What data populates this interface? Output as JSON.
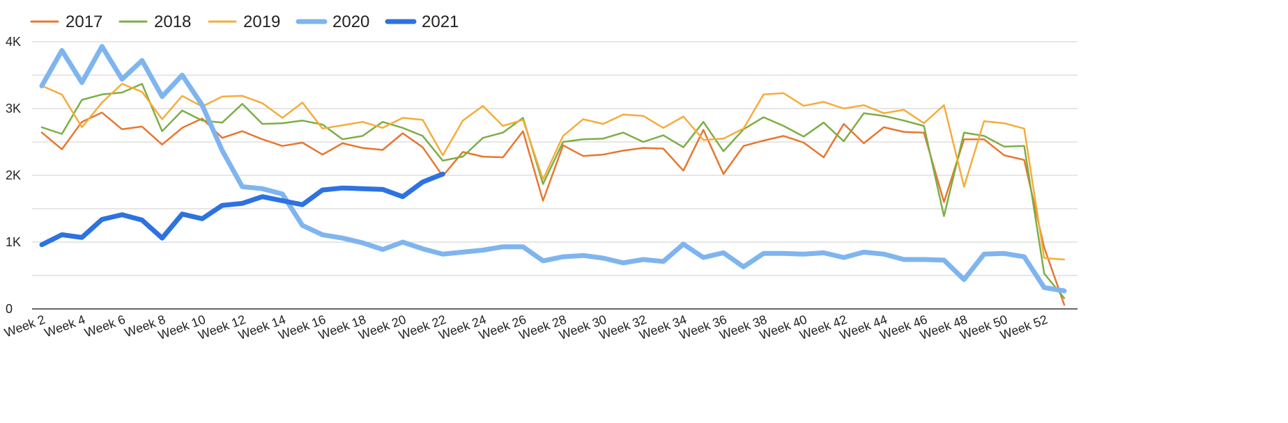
{
  "chart_data": {
    "type": "line",
    "title": "",
    "xlabel": "",
    "ylabel": "",
    "ylim": [
      0,
      4000
    ],
    "y_ticks": [
      {
        "value": 0,
        "label": "0"
      },
      {
        "value": 1000,
        "label": "1K"
      },
      {
        "value": 2000,
        "label": "2K"
      },
      {
        "value": 3000,
        "label": "3K"
      },
      {
        "value": 4000,
        "label": "4K"
      }
    ],
    "x_tick_labels": [
      "Week 2",
      "Week 4",
      "Week 6",
      "Week 8",
      "Week 10",
      "Week 12",
      "Week 14",
      "Week 16",
      "Week 18",
      "Week 20",
      "Week 22",
      "Week 24",
      "Week 26",
      "Week 28",
      "Week 30",
      "Week 32",
      "Week 34",
      "Week 36",
      "Week 38",
      "Week 40",
      "Week 42",
      "Week 44",
      "Week 46",
      "Week 48",
      "Week 50",
      "Week 52"
    ],
    "grid": true,
    "legend_position": "top-left",
    "x_start_week": 2,
    "series": [
      {
        "name": "2017",
        "color": "#e8762f",
        "values": [
          2640,
          2390,
          2800,
          2940,
          2690,
          2730,
          2460,
          2710,
          2850,
          2560,
          2660,
          2540,
          2440,
          2490,
          2310,
          2480,
          2410,
          2380,
          2630,
          2420,
          1990,
          2350,
          2280,
          2270,
          2660,
          1620,
          2450,
          2290,
          2310,
          2370,
          2410,
          2400,
          2070,
          2680,
          2020,
          2440,
          2520,
          2590,
          2490,
          2270,
          2770,
          2480,
          2720,
          2650,
          2640,
          1600,
          2540,
          2540,
          2300,
          2230,
          920,
          60
        ]
      },
      {
        "name": "2018",
        "color": "#7cae45",
        "values": [
          2720,
          2620,
          3130,
          3210,
          3240,
          3370,
          2660,
          2970,
          2820,
          2790,
          3070,
          2770,
          2780,
          2820,
          2760,
          2540,
          2590,
          2800,
          2710,
          2590,
          2220,
          2280,
          2560,
          2640,
          2860,
          1870,
          2500,
          2540,
          2550,
          2640,
          2500,
          2600,
          2420,
          2800,
          2360,
          2690,
          2870,
          2740,
          2580,
          2790,
          2510,
          2930,
          2890,
          2820,
          2740,
          1390,
          2640,
          2590,
          2430,
          2440,
          530,
          160
        ]
      },
      {
        "name": "2019",
        "color": "#f5ac3a",
        "values": [
          3340,
          3210,
          2720,
          3090,
          3370,
          3250,
          2840,
          3190,
          3030,
          3180,
          3190,
          3080,
          2860,
          3090,
          2700,
          2750,
          2800,
          2710,
          2860,
          2830,
          2300,
          2820,
          3040,
          2740,
          2830,
          1940,
          2590,
          2840,
          2770,
          2910,
          2890,
          2710,
          2880,
          2530,
          2550,
          2700,
          3210,
          3230,
          3040,
          3100,
          3000,
          3050,
          2930,
          2980,
          2780,
          3050,
          1830,
          2810,
          2780,
          2700,
          760,
          740
        ]
      },
      {
        "name": "2020",
        "color": "#7fb5ef",
        "width": 7,
        "values": [
          3340,
          3870,
          3390,
          3930,
          3440,
          3720,
          3180,
          3500,
          3050,
          2370,
          1830,
          1800,
          1720,
          1250,
          1110,
          1060,
          990,
          890,
          1000,
          900,
          820,
          850,
          880,
          930,
          930,
          720,
          780,
          800,
          760,
          690,
          740,
          710,
          970,
          770,
          840,
          630,
          830,
          830,
          820,
          840,
          770,
          850,
          820,
          740,
          740,
          730,
          440,
          820,
          830,
          780,
          320,
          270
        ]
      },
      {
        "name": "2021",
        "color": "#2d72e0",
        "width": 7,
        "values": [
          960,
          1110,
          1070,
          1340,
          1410,
          1330,
          1060,
          1420,
          1350,
          1550,
          1580,
          1680,
          1620,
          1560,
          1780,
          1810,
          1800,
          1790,
          1680,
          1900,
          2020
        ]
      }
    ]
  }
}
